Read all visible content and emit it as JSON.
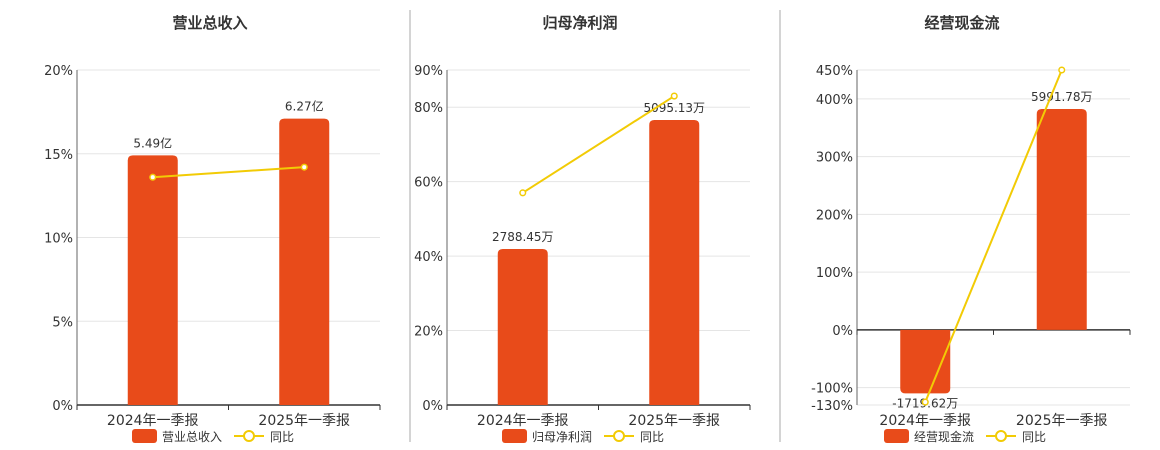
{
  "colors": {
    "bar": "#E84B1A",
    "line": "#F2CB05",
    "grid": "#e5e5e5",
    "axis": "#333333",
    "divider": "#aaaaaa",
    "text": "#333333"
  },
  "chart_data": [
    {
      "type": "bar",
      "title": "营业总收入",
      "categories": [
        "2024年一季报",
        "2025年一季报"
      ],
      "series": [
        {
          "name": "营业总收入",
          "type": "bar",
          "values": [
            5.49,
            6.27
          ],
          "labels": [
            "5.49亿",
            "6.27亿"
          ]
        },
        {
          "name": "同比",
          "type": "line",
          "values": [
            13.6,
            14.2
          ]
        }
      ],
      "y_right_range": [
        0,
        20
      ],
      "bar_ratio_to_axis_max": [
        0.745,
        0.855
      ],
      "y_ticks": [
        "20%",
        "15%",
        "10%",
        "5%",
        "0%"
      ],
      "legend": [
        "营业总收入",
        "同比"
      ],
      "legend_position": "bottom"
    },
    {
      "type": "bar",
      "title": "归母净利润",
      "categories": [
        "2024年一季报",
        "2025年一季报"
      ],
      "series": [
        {
          "name": "归母净利润",
          "type": "bar",
          "values": [
            2788.45,
            5095.13
          ],
          "labels": [
            "2788.45万",
            "5095.13万"
          ]
        },
        {
          "name": "同比",
          "type": "line",
          "values": [
            57,
            83
          ]
        }
      ],
      "y_right_range": [
        0,
        90
      ],
      "y_tick_values": [
        0,
        20,
        40,
        60,
        80,
        90
      ],
      "y_ticks": [
        "90%",
        "80%",
        "60%",
        "40%",
        "20%",
        "0%"
      ],
      "legend": [
        "归母净利润",
        "同比"
      ],
      "legend_position": "bottom"
    },
    {
      "type": "bar",
      "title": "经营现金流",
      "categories": [
        "2024年一季报",
        "2025年一季报"
      ],
      "series": [
        {
          "name": "经营现金流",
          "type": "bar",
          "values": [
            -1719.62,
            5991.78
          ],
          "labels": [
            "-1719.62万",
            "5991.78万"
          ]
        },
        {
          "name": "同比",
          "type": "line",
          "values": [
            -125,
            450
          ]
        }
      ],
      "y_right_range": [
        -130,
        450
      ],
      "y_tick_values": [
        -130,
        -100,
        0,
        100,
        200,
        300,
        400,
        450
      ],
      "y_ticks": [
        "450%",
        "400%",
        "300%",
        "200%",
        "100%",
        "0%",
        "-100%",
        "-130%"
      ],
      "legend": [
        "经营现金流",
        "同比"
      ],
      "legend_position": "bottom"
    }
  ]
}
